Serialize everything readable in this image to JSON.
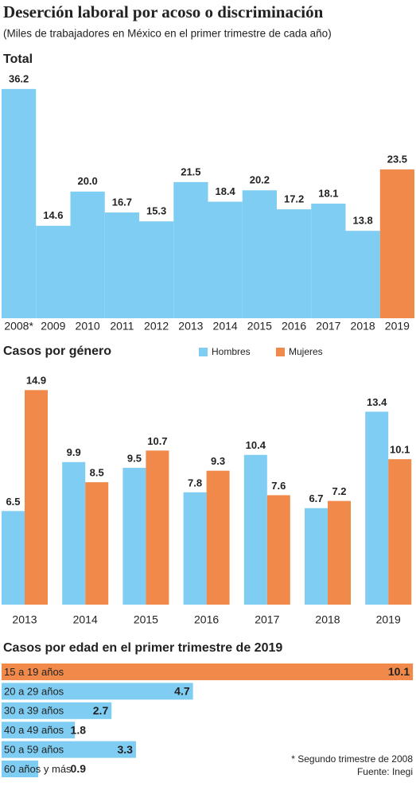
{
  "header": {
    "title": "Deserción laboral por acoso o discriminación",
    "subtitle": "(Miles de trabajadores en México en el primer trimestre de cada año)"
  },
  "chart_data": [
    {
      "type": "bar",
      "title": "Total",
      "categories": [
        "2008*",
        "2009",
        "2010",
        "2011",
        "2012",
        "2013",
        "2014",
        "2015",
        "2016",
        "2017",
        "2018",
        "2019"
      ],
      "values": [
        36.2,
        14.6,
        20.0,
        16.7,
        15.3,
        21.5,
        18.4,
        20.2,
        17.2,
        18.1,
        13.8,
        23.5
      ],
      "value_labels": [
        "36.2",
        "14.6",
        "20.0",
        "16.7",
        "15.3",
        "21.5",
        "18.4",
        "20.2",
        "17.2",
        "18.1",
        "13.8",
        "23.5"
      ],
      "colors": [
        "#7fcdf2",
        "#7fcdf2",
        "#7fcdf2",
        "#7fcdf2",
        "#7fcdf2",
        "#7fcdf2",
        "#7fcdf2",
        "#7fcdf2",
        "#7fcdf2",
        "#7fcdf2",
        "#7fcdf2",
        "#f0894a"
      ]
    },
    {
      "type": "grouped-bar",
      "title": "Casos por género",
      "categories": [
        "2013",
        "2014",
        "2015",
        "2016",
        "2017",
        "2018",
        "2019"
      ],
      "series": [
        {
          "name": "Hombres",
          "color": "#7fcdf2",
          "values": [
            6.5,
            9.9,
            9.5,
            7.8,
            10.4,
            6.7,
            13.4
          ]
        },
        {
          "name": "Mujeres",
          "color": "#f0894a",
          "values": [
            14.9,
            8.5,
            10.7,
            9.3,
            7.6,
            7.2,
            10.1
          ]
        }
      ]
    },
    {
      "type": "hbar",
      "title": "Casos por edad en el primer trimestre de 2019",
      "categories": [
        "15 a 19 años",
        "20 a 29 años",
        "30 a 39 años",
        "40 a 49 años",
        "50 a 59 años",
        "60 años y más"
      ],
      "values": [
        10.1,
        4.7,
        2.7,
        1.8,
        3.3,
        0.9
      ],
      "colors": [
        "#f0894a",
        "#7fcdf2",
        "#7fcdf2",
        "#7fcdf2",
        "#7fcdf2",
        "#7fcdf2"
      ]
    }
  ],
  "footer": {
    "note": "* Segundo trimestre de 2008",
    "source": "Fuente: Inegi"
  }
}
